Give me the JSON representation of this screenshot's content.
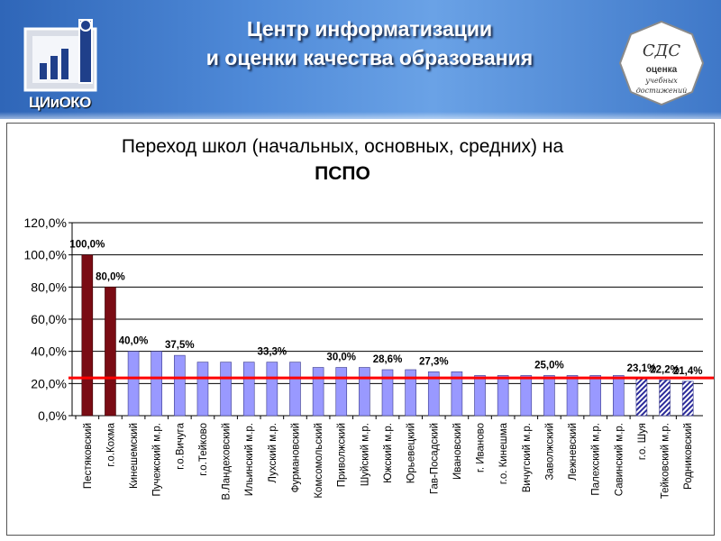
{
  "header": {
    "title_line1": "Центр информатизации",
    "title_line2": "и оценки качества образования",
    "logo_text": "ЦИиОКО",
    "seal_line1": "СДС",
    "seal_line2": "оценка",
    "seal_line3": "учебных",
    "seal_line4": "достижений"
  },
  "colors": {
    "header_bg": "#3f78c8",
    "bar_dark": "#7a0c14",
    "bar_light": "#9999ff",
    "bar_hatched": "#2b2b9a",
    "threshold_line": "#ff0000"
  },
  "chart_data": {
    "type": "bar",
    "title_line1": "Переход школ (начальных, основных, средних) на",
    "title_line2": "ПСПО",
    "categories": [
      "Пестяковский",
      "г.о.Кохма",
      "Кинешемский",
      "Пучежский м.р.",
      "г.о.Вичуга",
      "г.о.Тейково",
      "В.Ландеховский",
      "Ильинский м.р.",
      "Лухский м.р.",
      "Фурмановский",
      "Комсомольский",
      "Приволжский",
      "Шуйский м.р.",
      "Южский м.р.",
      "Юрьевецкий",
      "Гав-Посадский",
      "Ивановский",
      "г. Иваново",
      "г.о. Кинешма",
      "Вичугский м.р.",
      "Заволжский",
      "Лежневский",
      "Палехский м.р.",
      "Савинский м.р.",
      "г.о. Шуя",
      "Тейковский м.р.",
      "Родниковский"
    ],
    "values": [
      100.0,
      80.0,
      40.0,
      40.0,
      37.5,
      33.3,
      33.3,
      33.3,
      33.3,
      33.3,
      30.0,
      30.0,
      30.0,
      28.6,
      28.6,
      27.3,
      27.3,
      25.0,
      25.0,
      25.0,
      25.0,
      25.0,
      25.0,
      25.0,
      23.1,
      22.2,
      21.4
    ],
    "styles": [
      "dark",
      "dark",
      "light",
      "light",
      "light",
      "light",
      "light",
      "light",
      "light",
      "light",
      "light",
      "light",
      "light",
      "light",
      "light",
      "light",
      "light",
      "light",
      "light",
      "light",
      "light",
      "light",
      "light",
      "light",
      "hatched",
      "hatched",
      "hatched"
    ],
    "data_labels": [
      {
        "index": 0,
        "text": "100,0%"
      },
      {
        "index": 1,
        "text": "80,0%"
      },
      {
        "index": 2,
        "text": "40,0%"
      },
      {
        "index": 4,
        "text": "37,5%"
      },
      {
        "index": 8,
        "text": "33,3%"
      },
      {
        "index": 11,
        "text": "30,0%"
      },
      {
        "index": 13,
        "text": "28,6%"
      },
      {
        "index": 15,
        "text": "27,3%"
      },
      {
        "index": 20,
        "text": "25,0%"
      },
      {
        "index": 24,
        "text": "23,1%"
      },
      {
        "index": 25,
        "text": "22,2%"
      },
      {
        "index": 26,
        "text": "21,4%"
      }
    ],
    "y_ticks": [
      "0,0%",
      "20,0%",
      "40,0%",
      "60,0%",
      "80,0%",
      "100,0%",
      "120,0%"
    ],
    "ylim": [
      0,
      120
    ],
    "threshold": 23.5,
    "grid": true,
    "legend": "none"
  }
}
